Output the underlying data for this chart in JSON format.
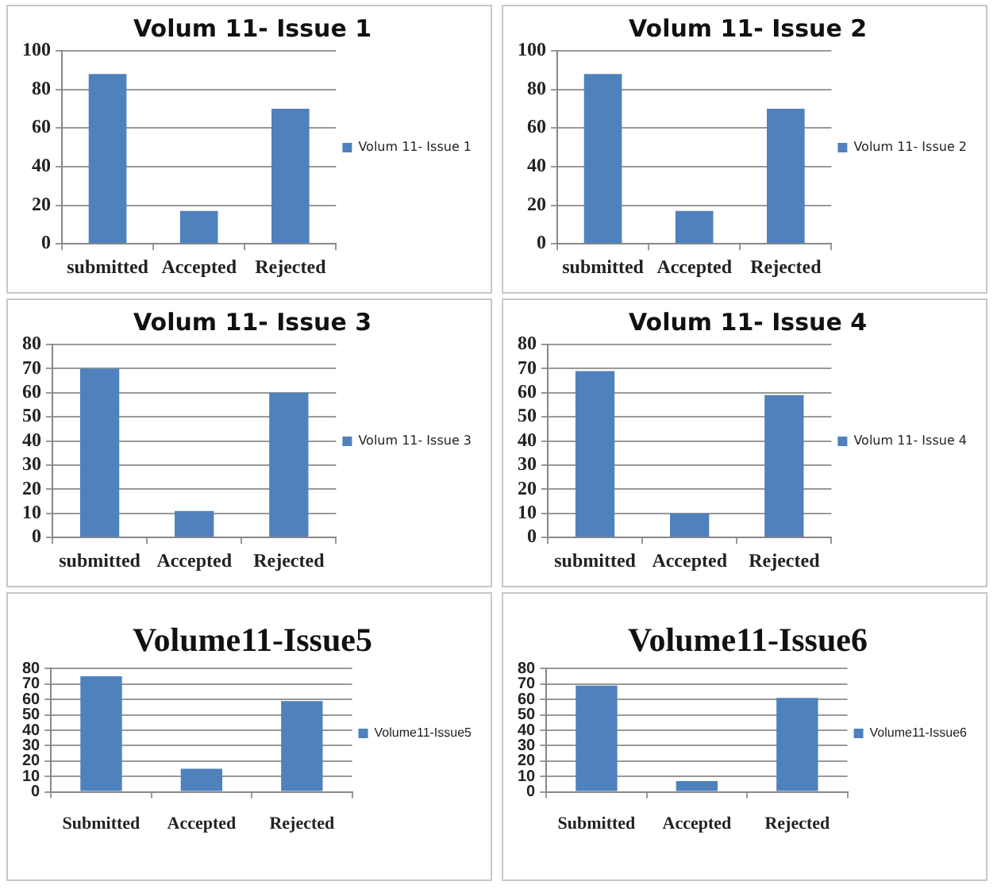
{
  "chart_data": [
    {
      "type": "bar",
      "title": "Volum 11- Issue 1",
      "categories": [
        "submitted",
        "Accepted",
        "Rejected"
      ],
      "series": [
        {
          "name": "Volum 11- Issue 1",
          "color": "#4f81bd",
          "values": [
            88,
            17,
            70
          ]
        }
      ],
      "ylim": [
        0,
        100
      ],
      "yticks": [
        0,
        20,
        40,
        60,
        80,
        100
      ],
      "grid": "y",
      "legend": "right"
    },
    {
      "type": "bar",
      "title": "Volum 11- Issue 2",
      "categories": [
        "submitted",
        "Accepted",
        "Rejected"
      ],
      "series": [
        {
          "name": "Volum 11- Issue 2",
          "color": "#4f81bd",
          "values": [
            88,
            17,
            70
          ]
        }
      ],
      "ylim": [
        0,
        100
      ],
      "yticks": [
        0,
        20,
        40,
        60,
        80,
        100
      ],
      "grid": "y",
      "legend": "right"
    },
    {
      "type": "bar",
      "title": "Volum 11- Issue 3",
      "categories": [
        "submitted",
        "Accepted",
        "Rejected"
      ],
      "series": [
        {
          "name": "Volum 11- Issue 3",
          "color": "#4f81bd",
          "values": [
            70,
            11,
            60
          ]
        }
      ],
      "ylim": [
        0,
        80
      ],
      "yticks": [
        0,
        10,
        20,
        30,
        40,
        50,
        60,
        70,
        80
      ],
      "grid": "y",
      "legend": "right"
    },
    {
      "type": "bar",
      "title": "Volum 11- Issue 4",
      "categories": [
        "submitted",
        "Accepted",
        "Rejected"
      ],
      "series": [
        {
          "name": "Volum 11- Issue 4",
          "color": "#4f81bd",
          "values": [
            69,
            10,
            59
          ]
        }
      ],
      "ylim": [
        0,
        80
      ],
      "yticks": [
        0,
        10,
        20,
        30,
        40,
        50,
        60,
        70,
        80
      ],
      "grid": "y",
      "legend": "right"
    },
    {
      "type": "bar",
      "title": "Volume11-Issue5",
      "categories": [
        "Submitted",
        "Accepted",
        "Rejected"
      ],
      "series": [
        {
          "name": "Volume11-Issue5",
          "color": "#4f81bd",
          "values": [
            75,
            15,
            59
          ]
        }
      ],
      "ylim": [
        0,
        80
      ],
      "yticks": [
        0,
        10,
        20,
        30,
        40,
        50,
        60,
        70,
        80
      ],
      "grid": "y",
      "legend": "right"
    },
    {
      "type": "bar",
      "title": "Volume11-Issue6",
      "categories": [
        "Submitted",
        "Accepted",
        "Rejected"
      ],
      "series": [
        {
          "name": "Volume11-Issue6",
          "color": "#4f81bd",
          "values": [
            69,
            7,
            61
          ]
        }
      ],
      "ylim": [
        0,
        80
      ],
      "yticks": [
        0,
        10,
        20,
        30,
        40,
        50,
        60,
        70,
        80
      ],
      "grid": "y",
      "legend": "right"
    }
  ]
}
